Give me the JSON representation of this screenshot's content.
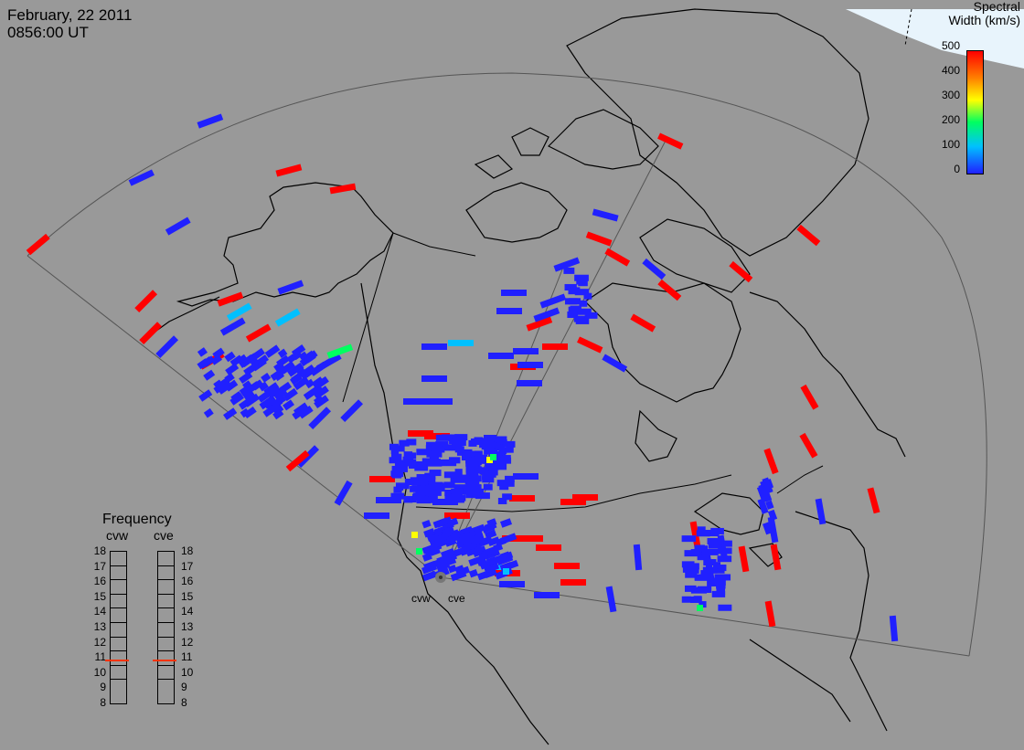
{
  "header": {
    "date": "February, 22 2011",
    "time": "0856:00 UT"
  },
  "legend": {
    "title_line1": "Spectral",
    "title_line2": "Width (km/s)",
    "ticks": [
      "500",
      "400",
      "300",
      "200",
      "100",
      "0"
    ],
    "range": [
      0,
      500
    ],
    "colors": {
      "high": "#ff0000",
      "mid_high": "#ff8000",
      "mid": "#ffff00",
      "mid_low": "#00ff60",
      "low_mid": "#00c0ff",
      "low": "#2020ff"
    }
  },
  "radars": {
    "west_label": "cvw",
    "east_label": "cve"
  },
  "frequency_panel": {
    "title": "Frequency",
    "col_west": "cvw",
    "col_east": "cve",
    "ticks": [
      "18",
      "17",
      "16",
      "15",
      "14",
      "13",
      "12",
      "11",
      "10",
      "9",
      "8"
    ],
    "marker_value": "11",
    "marker_color": "#ff3300"
  },
  "map": {
    "background": "#999999",
    "coastline_color": "#000000",
    "fov_color": "#444444",
    "night_region_color": "#e8f4fc"
  }
}
